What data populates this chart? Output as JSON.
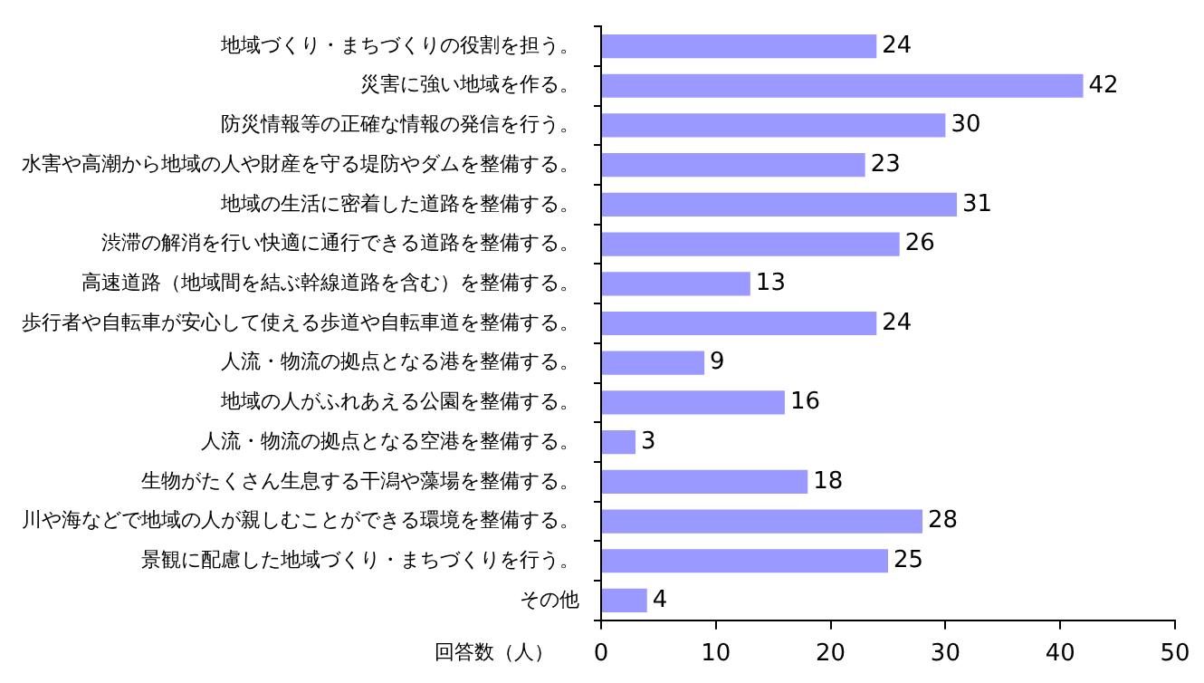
{
  "chart_data": {
    "type": "bar",
    "orientation": "horizontal",
    "xlabel": "回答数（人）",
    "categories": [
      "地域づくり・まちづくりの役割を担う。",
      "災害に強い地域を作る。",
      "防災情報等の正確な情報の発信を行う。",
      "水害や高潮から地域の人や財産を守る堤防やダムを整備する。",
      "地域の生活に密着した道路を整備する。",
      "渋滞の解消を行い快適に通行できる道路を整備する。",
      "高速道路（地域間を結ぶ幹線道路を含む）を整備する。",
      "歩行者や自転車が安心して使える歩道や自転車道を整備する。",
      "人流・物流の拠点となる港を整備する。",
      "地域の人がふれあえる公園を整備する。",
      "人流・物流の拠点となる空港を整備する。",
      "生物がたくさん生息する干潟や藻場を整備する。",
      "川や海などで地域の人が親しむことができる環境を整備する。",
      "景観に配慮した地域づくり・まちづくりを行う。",
      "その他"
    ],
    "values": [
      24,
      42,
      30,
      23,
      31,
      26,
      13,
      24,
      9,
      16,
      3,
      18,
      28,
      25,
      4
    ],
    "color": "#9999ff",
    "xlim": [
      0,
      50
    ],
    "xticks": [
      0,
      10,
      20,
      30,
      40,
      50
    ],
    "grid": false,
    "legend": false,
    "data_labels": true
  }
}
